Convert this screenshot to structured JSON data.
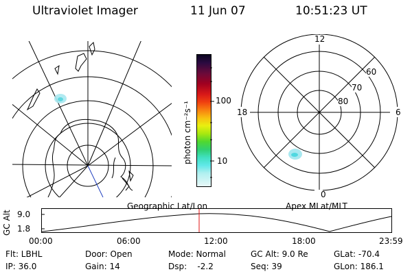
{
  "header": {
    "title": "Ultraviolet Imager",
    "date": "11 Jun 07",
    "time": "10:51:23 UT"
  },
  "geo_panel": {
    "caption": "Geographic Lat/Lon"
  },
  "colorbar": {
    "unit_label": "photon cm⁻²s⁻¹",
    "ticks": [
      "100",
      "10"
    ],
    "scale": "log",
    "colors": [
      "#1a0a2e",
      "#3a0a4a",
      "#6a0a3a",
      "#a00020",
      "#d01020",
      "#e83010",
      "#f06010",
      "#f89010",
      "#f8c010",
      "#e8e810",
      "#b8e810",
      "#70e020",
      "#30d040",
      "#40e0b0",
      "#50e8e0",
      "#a8f0f0",
      "#e0f8f8"
    ]
  },
  "polar_panel": {
    "caption": "Apex MLat/MLT",
    "mlt_labels": {
      "top": "12",
      "right": "6",
      "bottom": "0",
      "left": "18"
    },
    "lat_labels": [
      "60",
      "70",
      "80"
    ]
  },
  "altitude_plot": {
    "ylabel": "GC Alt",
    "yticks": [
      "9.0",
      "1.8"
    ],
    "xticks": [
      "00:00",
      "06:00",
      "12:00",
      "18:00",
      "23:59"
    ],
    "current_time_marker": "10:51:23"
  },
  "footer": {
    "row1": {
      "flt": "Flt: LBHL",
      "door": "Door: Open",
      "mode": "Mode: Normal",
      "gcalt": "GC Alt: 9.0 Re",
      "glat": "GLat: -70.4"
    },
    "row2": {
      "ip": "IP: 36.0",
      "gain": "Gain: 14",
      "dsp": "Dsp:    -2.2",
      "seq": "Seq: 39",
      "glon": "GLon: 186.1"
    }
  }
}
